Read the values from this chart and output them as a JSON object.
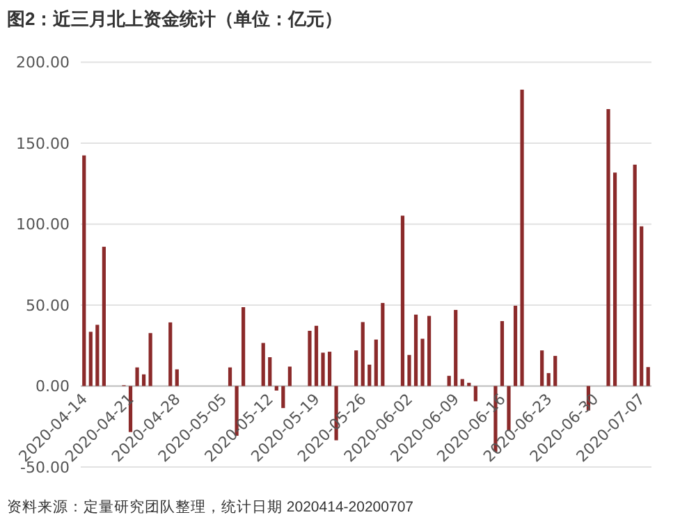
{
  "chart_data": {
    "type": "bar",
    "title": "图2：近三月北上资金统计（单位：亿元）",
    "categories": [
      "2020-04-14",
      null,
      null,
      null,
      null,
      null,
      null,
      "2020-04-21",
      null,
      null,
      null,
      null,
      null,
      null,
      "2020-04-28",
      null,
      null,
      null,
      null,
      null,
      null,
      "2020-05-05",
      null,
      null,
      null,
      null,
      null,
      null,
      "2020-05-12",
      null,
      null,
      null,
      null,
      null,
      null,
      "2020-05-19",
      null,
      null,
      null,
      null,
      null,
      null,
      "2020-05-26",
      null,
      null,
      null,
      null,
      null,
      null,
      "2020-06-02",
      null,
      null,
      null,
      null,
      null,
      null,
      "2020-06-09",
      null,
      null,
      null,
      null,
      null,
      null,
      "2020-06-16",
      null,
      null,
      null,
      null,
      null,
      null,
      "2020-06-23",
      null,
      null,
      null,
      null,
      null,
      null,
      "2020-06-30",
      null,
      null,
      null,
      null,
      null,
      null,
      "2020-07-07",
      null
    ],
    "values": [
      142.4,
      33.5,
      37.8,
      86,
      null,
      null,
      0.5,
      -28.4,
      11.5,
      7.2,
      32.7,
      null,
      null,
      39.3,
      10.3,
      null,
      null,
      null,
      null,
      null,
      null,
      null,
      11.5,
      -30.7,
      48.7,
      null,
      null,
      26.6,
      17.8,
      -2.8,
      -13.6,
      12,
      null,
      null,
      34.1,
      37.2,
      20.6,
      21.2,
      -33.5,
      null,
      null,
      22,
      39.5,
      13.2,
      28.7,
      51.3,
      null,
      null,
      105.2,
      19.2,
      44.1,
      29.2,
      43.3,
      null,
      null,
      6.3,
      47,
      4.3,
      2,
      -9.4,
      null,
      null,
      -40.6,
      40.1,
      -27.3,
      49.6,
      183,
      null,
      null,
      22,
      8,
      18.6,
      null,
      null,
      null,
      null,
      -15.1,
      null,
      null,
      171,
      131.8,
      null,
      null,
      136.7,
      98.6,
      11.7
    ],
    "color": "#8b2a2a",
    "ylim": [
      -50,
      200
    ],
    "yticks": [
      {
        "value": -50,
        "label": "-50.00"
      },
      {
        "value": 0,
        "label": "0.00"
      },
      {
        "value": 50,
        "label": "50.00"
      },
      {
        "value": 100,
        "label": "100.00"
      },
      {
        "value": 150,
        "label": "150.00"
      },
      {
        "value": 200,
        "label": "200.00"
      }
    ],
    "grid": "y",
    "annotations": [
      "资料来源：定量研究团队整理，统计日期 2020414-20200707"
    ]
  }
}
